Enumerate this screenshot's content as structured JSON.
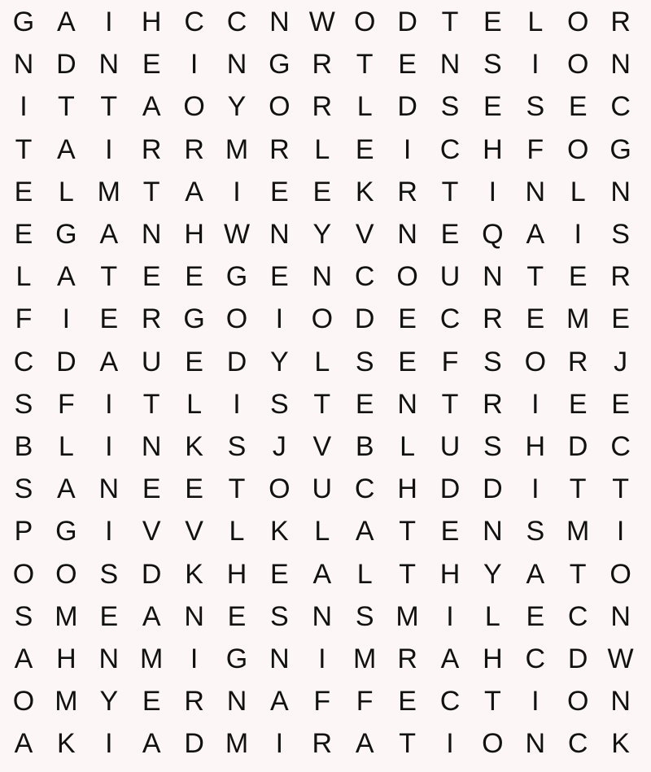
{
  "grid": [
    [
      "G",
      "A",
      "I",
      "H",
      "C",
      "C",
      "N",
      "W",
      "O",
      "D",
      "T",
      "E",
      "L",
      "O",
      "R"
    ],
    [
      "N",
      "D",
      "N",
      "E",
      "I",
      "N",
      "G",
      "R",
      "T",
      "E",
      "N",
      "S",
      "I",
      "O",
      "N"
    ],
    [
      "I",
      "T",
      "T",
      "A",
      "O",
      "Y",
      "O",
      "R",
      "L",
      "D",
      "S",
      "E",
      "S",
      "E",
      "C"
    ],
    [
      "T",
      "A",
      "I",
      "R",
      "R",
      "M",
      "R",
      "L",
      "E",
      "I",
      "C",
      "H",
      "F",
      "O",
      "G"
    ],
    [
      "E",
      "L",
      "M",
      "T",
      "A",
      "I",
      "E",
      "E",
      "K",
      "R",
      "T",
      "I",
      "N",
      "L",
      "N"
    ],
    [
      "E",
      "G",
      "A",
      "N",
      "H",
      "W",
      "N",
      "Y",
      "V",
      "N",
      "E",
      "Q",
      "A",
      "I",
      "S"
    ],
    [
      "L",
      "A",
      "T",
      "E",
      "E",
      "G",
      "E",
      "N",
      "C",
      "O",
      "U",
      "N",
      "T",
      "E",
      "R"
    ],
    [
      "F",
      "I",
      "E",
      "R",
      "G",
      "O",
      "I",
      "O",
      "D",
      "E",
      "C",
      "R",
      "E",
      "M",
      "E"
    ],
    [
      "C",
      "D",
      "A",
      "U",
      "E",
      "D",
      "Y",
      "L",
      "S",
      "E",
      "F",
      "S",
      "O",
      "R",
      "J"
    ],
    [
      "S",
      "F",
      "I",
      "T",
      "L",
      "I",
      "S",
      "T",
      "E",
      "N",
      "T",
      "R",
      "I",
      "E",
      "E"
    ],
    [
      "B",
      "L",
      "I",
      "N",
      "K",
      "S",
      "J",
      "V",
      "B",
      "L",
      "U",
      "S",
      "H",
      "D",
      "C"
    ],
    [
      "S",
      "A",
      "N",
      "E",
      "E",
      "T",
      "O",
      "U",
      "C",
      "H",
      "D",
      "D",
      "I",
      "T",
      "T"
    ],
    [
      "P",
      "G",
      "I",
      "V",
      "V",
      "L",
      "K",
      "L",
      "A",
      "T",
      "E",
      "N",
      "S",
      "M",
      "I"
    ],
    [
      "O",
      "O",
      "S",
      "D",
      "K",
      "H",
      "E",
      "A",
      "L",
      "T",
      "H",
      "Y",
      "A",
      "T",
      "O"
    ],
    [
      "S",
      "M",
      "E",
      "A",
      "N",
      "E",
      "S",
      "N",
      "S",
      "M",
      "I",
      "L",
      "E",
      "C",
      "N"
    ],
    [
      "A",
      "H",
      "N",
      "M",
      "I",
      "G",
      "N",
      "I",
      "M",
      "R",
      "A",
      "H",
      "C",
      "D",
      "W"
    ],
    [
      "O",
      "M",
      "Y",
      "E",
      "R",
      "N",
      "A",
      "F",
      "F",
      "E",
      "C",
      "T",
      "I",
      "O",
      "N"
    ],
    [
      "A",
      "K",
      "I",
      "A",
      "D",
      "M",
      "I",
      "R",
      "A",
      "T",
      "I",
      "O",
      "N",
      "C",
      "K"
    ]
  ]
}
